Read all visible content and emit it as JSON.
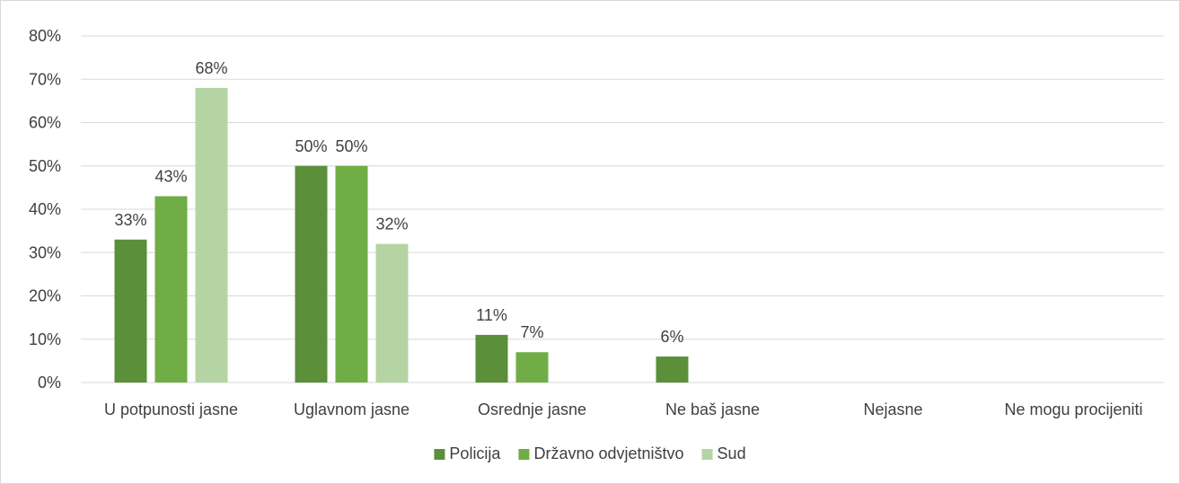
{
  "chart_data": {
    "type": "bar",
    "categories": [
      "U potpunosti jasne",
      "Uglavnom jasne",
      "Osrednje jasne",
      "Ne baš jasne",
      "Nejasne",
      "Ne mogu procijeniti"
    ],
    "series": [
      {
        "name": "Policija",
        "color": "#5b8f3a",
        "values": [
          33,
          50,
          11,
          6,
          0,
          0
        ]
      },
      {
        "name": "Državno odvjetništvo",
        "color": "#70ad47",
        "values": [
          43,
          50,
          7,
          0,
          0,
          0
        ]
      },
      {
        "name": "Sud",
        "color": "#b5d4a3",
        "values": [
          68,
          32,
          0,
          0,
          0,
          0
        ]
      }
    ],
    "data_labels": [
      [
        "33%",
        "50%",
        "11%",
        "6%",
        "",
        ""
      ],
      [
        "43%",
        "50%",
        "7%",
        "",
        "",
        ""
      ],
      [
        "68%",
        "32%",
        "",
        "",
        "",
        ""
      ]
    ],
    "y_ticks": [
      0,
      10,
      20,
      30,
      40,
      50,
      60,
      70,
      80
    ],
    "y_tick_labels": [
      "0%",
      "10%",
      "20%",
      "30%",
      "40%",
      "50%",
      "60%",
      "70%",
      "80%"
    ],
    "ylim": [
      0,
      80
    ],
    "grid": true,
    "legend_position": "bottom",
    "title": "",
    "xlabel": "",
    "ylabel": ""
  }
}
